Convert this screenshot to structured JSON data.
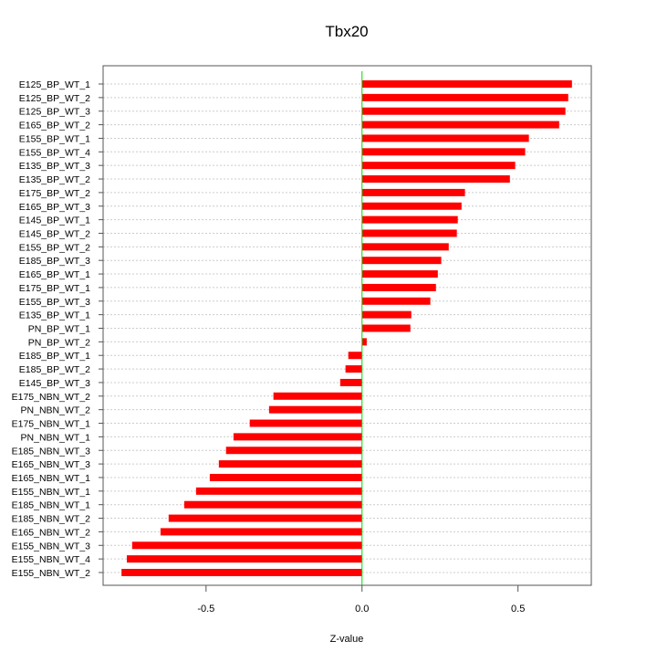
{
  "chart_data": {
    "type": "bar",
    "orientation": "horizontal",
    "title": "Tbx20",
    "xlabel": "Z-value",
    "ylabel": "",
    "xlim": [
      -0.83,
      0.735
    ],
    "xticks": [
      -0.5,
      0.0,
      0.5
    ],
    "xtick_labels": [
      "-0.5",
      "0.0",
      "0.5"
    ],
    "grid": "horizontal dotted",
    "bar_color": "#ff0000",
    "zero_line_color": "#00dd00",
    "categories": [
      "E125_BP_WT_1",
      "E125_BP_WT_2",
      "E125_BP_WT_3",
      "E165_BP_WT_2",
      "E155_BP_WT_1",
      "E155_BP_WT_4",
      "E135_BP_WT_3",
      "E135_BP_WT_2",
      "E175_BP_WT_2",
      "E165_BP_WT_3",
      "E145_BP_WT_1",
      "E145_BP_WT_2",
      "E155_BP_WT_2",
      "E185_BP_WT_3",
      "E165_BP_WT_1",
      "E175_BP_WT_1",
      "E155_BP_WT_3",
      "E135_BP_WT_1",
      "PN_BP_WT_1",
      "PN_BP_WT_2",
      "E185_BP_WT_1",
      "E185_BP_WT_2",
      "E145_BP_WT_3",
      "E175_NBN_WT_2",
      "PN_NBN_WT_2",
      "E175_NBN_WT_1",
      "PN_NBN_WT_1",
      "E185_NBN_WT_3",
      "E165_NBN_WT_3",
      "E165_NBN_WT_1",
      "E155_NBN_WT_1",
      "E185_NBN_WT_1",
      "E185_NBN_WT_2",
      "E165_NBN_WT_2",
      "E155_NBN_WT_3",
      "E155_NBN_WT_4",
      "E155_NBN_WT_2"
    ],
    "values": [
      0.673,
      0.661,
      0.652,
      0.632,
      0.535,
      0.523,
      0.491,
      0.474,
      0.33,
      0.319,
      0.307,
      0.304,
      0.278,
      0.254,
      0.243,
      0.237,
      0.219,
      0.158,
      0.155,
      0.015,
      -0.044,
      -0.053,
      -0.07,
      -0.284,
      -0.298,
      -0.36,
      -0.412,
      -0.436,
      -0.459,
      -0.488,
      -0.532,
      -0.57,
      -0.62,
      -0.646,
      -0.737,
      -0.754,
      -0.771
    ]
  }
}
